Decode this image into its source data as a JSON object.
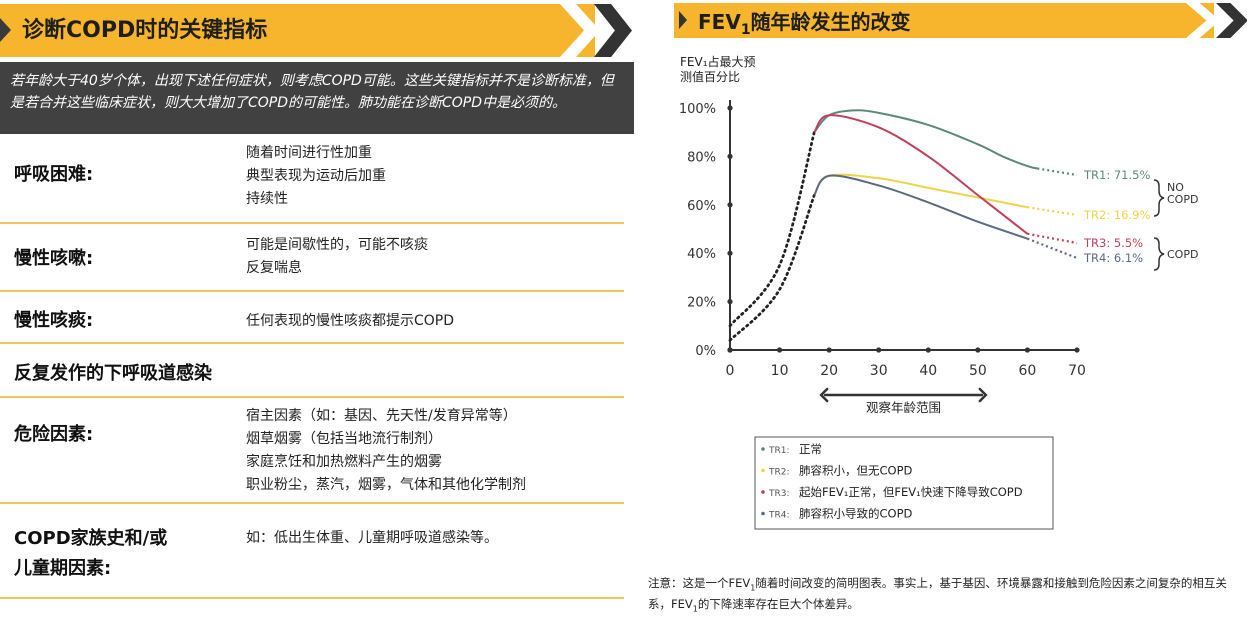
{
  "left": {
    "title": "诊断COPD时的关键指标",
    "intro": "若年龄大于40岁个体，出现下述任何症状，则考虑COPD可能。这些关键指标并不是诊断标准，但是若合并这些临床症状，则大大增加了COPD的可能性。肺功能在诊断COPD中是必须的。",
    "rows": [
      {
        "label": "呼吸困难:",
        "details": [
          "随着时间进行性加重",
          "典型表现为运动后加重",
          "持续性"
        ]
      },
      {
        "label": "慢性咳嗽:",
        "details": [
          "可能是间歇性的，可能不咳痰",
          "反复喘息"
        ]
      },
      {
        "label": "慢性咳痰:",
        "details": [
          "任何表现的慢性咳痰都提示COPD"
        ]
      },
      {
        "label": "反复发作的下呼吸道感染",
        "details": []
      },
      {
        "label": "危险因素:",
        "details": [
          "宿主因素（如：基因、先天性/发育异常等）",
          "烟草烟雾（包括当地流行制剂）",
          "家庭烹饪和加热燃料产生的烟雾",
          "职业粉尘，蒸汽，烟雾，气体和其他化学制剂"
        ]
      },
      {
        "label": "COPD家族史和/或儿童期因素:",
        "label_lines": [
          "COPD家族史和/或",
          "儿童期因素:"
        ],
        "details": [
          "如：低出生体重、儿童期呼吸道感染等。"
        ]
      }
    ]
  },
  "right": {
    "title_pre": "FEV",
    "title_sub": "1",
    "title_post": "随年龄发生的改变",
    "note_parts": [
      "注意：这是一个FEV",
      "1",
      "随着时间改变的简明图表。事实上，基于基因、环境暴露和接触到危险因素之间复杂的相互关系，FEV",
      "1",
      "的下降速率存在巨大个体差异。"
    ]
  },
  "chart_data": {
    "type": "line",
    "ylabel_lines": [
      "FEV₁占最大预",
      "测值百分比"
    ],
    "xlabel": "观察年龄范围",
    "x_ticks": [
      0,
      10,
      20,
      30,
      40,
      50,
      60,
      70
    ],
    "y_ticks": [
      "0%",
      "20%",
      "40%",
      "60%",
      "80%",
      "100%"
    ],
    "xlim": [
      0,
      70
    ],
    "ylim": [
      0,
      100
    ],
    "series": [
      {
        "name": "TR1",
        "color": "#5b8a7d",
        "end_label": "TR1: 71.5%",
        "x": [
          0,
          10,
          17,
          20,
          25,
          30,
          40,
          50,
          55,
          60,
          62
        ],
        "y": [
          10,
          35,
          90,
          97,
          99,
          98,
          93,
          85,
          80,
          76,
          75
        ]
      },
      {
        "name": "TR2",
        "color": "#f0d34a",
        "end_label": "TR2: 16.9%",
        "x": [
          0,
          10,
          17,
          20,
          30,
          40,
          50,
          60
        ],
        "y": [
          4,
          25,
          64,
          72,
          71,
          67,
          63,
          59
        ]
      },
      {
        "name": "TR3",
        "color": "#c0405a",
        "end_label": "TR3: 5.5%",
        "x": [
          0,
          10,
          17,
          20,
          30,
          40,
          50,
          60
        ],
        "y": [
          10,
          35,
          90,
          97,
          92,
          80,
          64,
          48
        ]
      },
      {
        "name": "TR4",
        "color": "#5a6a82",
        "end_label": "TR4: 6.1%",
        "x": [
          0,
          10,
          17,
          20,
          30,
          40,
          50,
          60
        ],
        "y": [
          4,
          25,
          64,
          72,
          68,
          61,
          53,
          46
        ]
      }
    ],
    "group_labels": [
      {
        "label_lines": [
          "NO",
          "COPD"
        ],
        "members": [
          "TR1",
          "TR2"
        ]
      },
      {
        "label_lines": [
          "COPD"
        ],
        "members": [
          "TR3",
          "TR4"
        ]
      }
    ],
    "legend": [
      {
        "key": "TR1",
        "text": "正常",
        "color": "#5b8a7d"
      },
      {
        "key": "TR2",
        "text": "肺容积小，但无COPD",
        "color": "#f0d34a"
      },
      {
        "key": "TR3",
        "text": "起始FEV₁正常，但FEV₁快速下降导致COPD",
        "color": "#c0405a"
      },
      {
        "key": "TR4",
        "text": "肺容积小导致的COPD",
        "color": "#5a6a82"
      }
    ],
    "legend_position": "bottom-center"
  }
}
